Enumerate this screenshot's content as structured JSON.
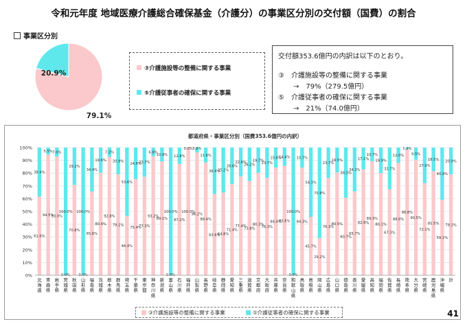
{
  "title": "令和元年度 地域医療介護総合確保基金（介護分）の事業区分別の交付額（国費）の割合",
  "section_label": "事業区分別",
  "page_number": "41",
  "colors": {
    "facility": "#fbc9cb",
    "worker": "#5fe8ec"
  },
  "pie": {
    "items": [
      {
        "name": "③介護施設等の整備に関する事業",
        "value": 79.1,
        "label": "79.1%"
      },
      {
        "name": "⑤介護従事者の確保に関する事業",
        "value": 20.9,
        "label": "20.9%"
      }
    ]
  },
  "note": {
    "line1": "交付額353.6億円の内訳は以下のとおり。",
    "line2": "③　介護施設等の整備に関する事業",
    "line3": "→　79%（279.5億円）",
    "line4": "⑤　介護従事者の確保に関する事業",
    "line5": "→　21%（74.0億円）"
  },
  "chart_data": {
    "type": "bar",
    "stacked": true,
    "title": "都道府県・事業区分別（国費353.6億円の内訳）",
    "ylim": [
      0,
      100
    ],
    "yticks": [
      "0%",
      "10%",
      "20%",
      "30%",
      "40%",
      "50%",
      "60%",
      "70%",
      "80%",
      "90%",
      "100%"
    ],
    "categories": [
      "北海道",
      "青森県",
      "岩手県",
      "宮城県",
      "秋田県",
      "山形県",
      "福島県",
      "茨城県",
      "栃木県",
      "群馬県",
      "埼玉県",
      "千葉県",
      "東京都",
      "神奈川県",
      "新潟県",
      "富山県",
      "石川県",
      "福井県",
      "山梨県",
      "長野県",
      "岐阜県",
      "静岡県",
      "愛知県",
      "三重県",
      "滋賀県",
      "京都府",
      "大阪府",
      "兵庫県",
      "奈良県",
      "和歌山県",
      "鳥取県",
      "島根県",
      "岡山県",
      "広島県",
      "山口県",
      "徳島県",
      "香川県",
      "愛媛県",
      "高知県",
      "福岡県",
      "佐賀県",
      "長崎県",
      "熊本県",
      "大分県",
      "宮崎県",
      "鹿児島県",
      "沖縄県",
      "計"
    ],
    "series": [
      {
        "name": "③介護施設等の整備に関する事業",
        "values": [
          61.6,
          94.5,
          93.0,
          0.0,
          70.8,
          0.0,
          65.6,
          80.4,
          92.8,
          79.1,
          46.4,
          75.4,
          77.3,
          93.2,
          89.1,
          0.0,
          87.2,
          100.0,
          96.2,
          88.4,
          63.6,
          64.8,
          71.4,
          77.4,
          73.8,
          80.3,
          76.3,
          84.4,
          85.6,
          0.0,
          84.3,
          45.7,
          29.2,
          76.3,
          80.5,
          60.7,
          65.7,
          82.9,
          89.3,
          80.1,
          67.3,
          88.0,
          98.8,
          90.5,
          72.1,
          81.5,
          59.1,
          79.1
        ],
        "labels": [
          "61.6%",
          "94.5%",
          "93.0%",
          "0.0%",
          "70.8%",
          "0.0%",
          "65.6%",
          "80.4%",
          "92.8%",
          "79.1%",
          "46.4%",
          "75.4%",
          "77.3%",
          "93.2%",
          "89.1%",
          "0.0%",
          "87.2%",
          "100.0%",
          "96.2%",
          "88.4%",
          "63.6%",
          "64.8%",
          "71.4%",
          "77.4%",
          "73.8%",
          "80.3%",
          "76.3%",
          "84.4%",
          "85.6%",
          "0.0%",
          "84.3%",
          "45.7%",
          "29.2%",
          "76.3%",
          "80.5%",
          "60.7%",
          "65.7%",
          "82.9%",
          "89.3%",
          "80.1%",
          "67.3%",
          "88.0%",
          "98.8%",
          "90.5%",
          "72.1%",
          "81.5%",
          "59.1%",
          "79.1%"
        ]
      },
      {
        "name": "⑤介護従事者の確保に関する事業",
        "values": [
          38.4,
          5.5,
          7.0,
          100.0,
          29.2,
          100.0,
          34.4,
          19.6,
          7.2,
          20.9,
          53.6,
          24.6,
          22.7,
          6.8,
          10.9,
          100.0,
          12.8,
          0.0,
          3.8,
          11.6,
          36.4,
          35.2,
          28.6,
          22.6,
          26.2,
          19.7,
          23.7,
          15.6,
          14.4,
          100.0,
          15.7,
          54.3,
          70.8,
          23.7,
          19.5,
          39.3,
          34.3,
          17.1,
          10.7,
          19.9,
          32.7,
          12.0,
          1.2,
          9.5,
          27.9,
          18.5,
          40.9,
          20.9
        ],
        "labels": [
          "38.4%",
          "5.5%",
          "7.0%",
          "100.0%",
          "29.2%",
          "100.0%",
          "34.4%",
          "19.6%",
          "7.2%",
          "20.9%",
          "53.6%",
          "24.6%",
          "22.7%",
          "6.8%",
          "10.9%",
          "100.0%",
          "12.8%",
          "0.0%",
          "3.8%",
          "11.6%",
          "36.4%",
          "35.2%",
          "28.6%",
          "22.6%",
          "26.2%",
          "19.7%",
          "23.7%",
          "15.6%",
          "14.4%",
          "100.0%",
          "15.7%",
          "54.3%",
          "70.8%",
          "23.7%",
          "19.5%",
          "39.3%",
          "34.3%",
          "17.1%",
          "10.7%",
          "19.9%",
          "32.7%",
          "12.0%",
          "1.2%",
          "9.5%",
          "27.9%",
          "18.5%",
          "40.9%",
          "20.9%"
        ]
      }
    ],
    "legend_position": "bottom"
  }
}
